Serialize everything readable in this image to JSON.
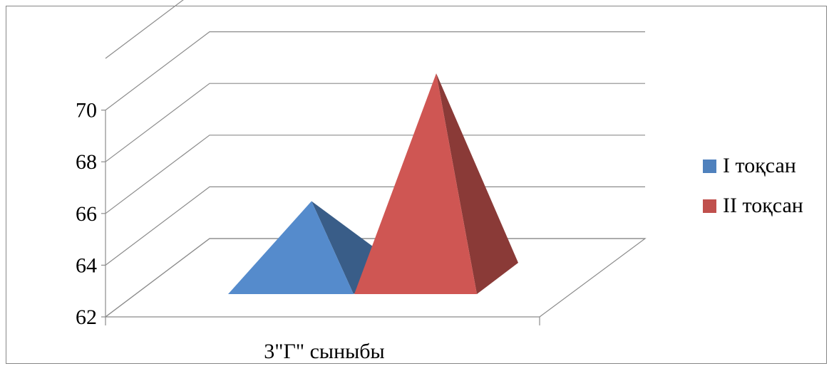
{
  "chart_data": {
    "type": "bar",
    "bar_shape": "pyramid-3d",
    "categories": [
      "3\"Г\" сыныбы"
    ],
    "series": [
      {
        "name": "I тоқсан",
        "values": [
          66.0
        ],
        "color": "#4f81bd"
      },
      {
        "name": "II тоқсан",
        "values": [
          71.5
        ],
        "color": "#c0504d"
      }
    ],
    "ylim": [
      62,
      72
    ],
    "yticks": [
      62,
      64,
      66,
      68,
      70
    ],
    "grid": true,
    "legend_position": "right",
    "title": "",
    "xlabel": "",
    "ylabel": ""
  }
}
